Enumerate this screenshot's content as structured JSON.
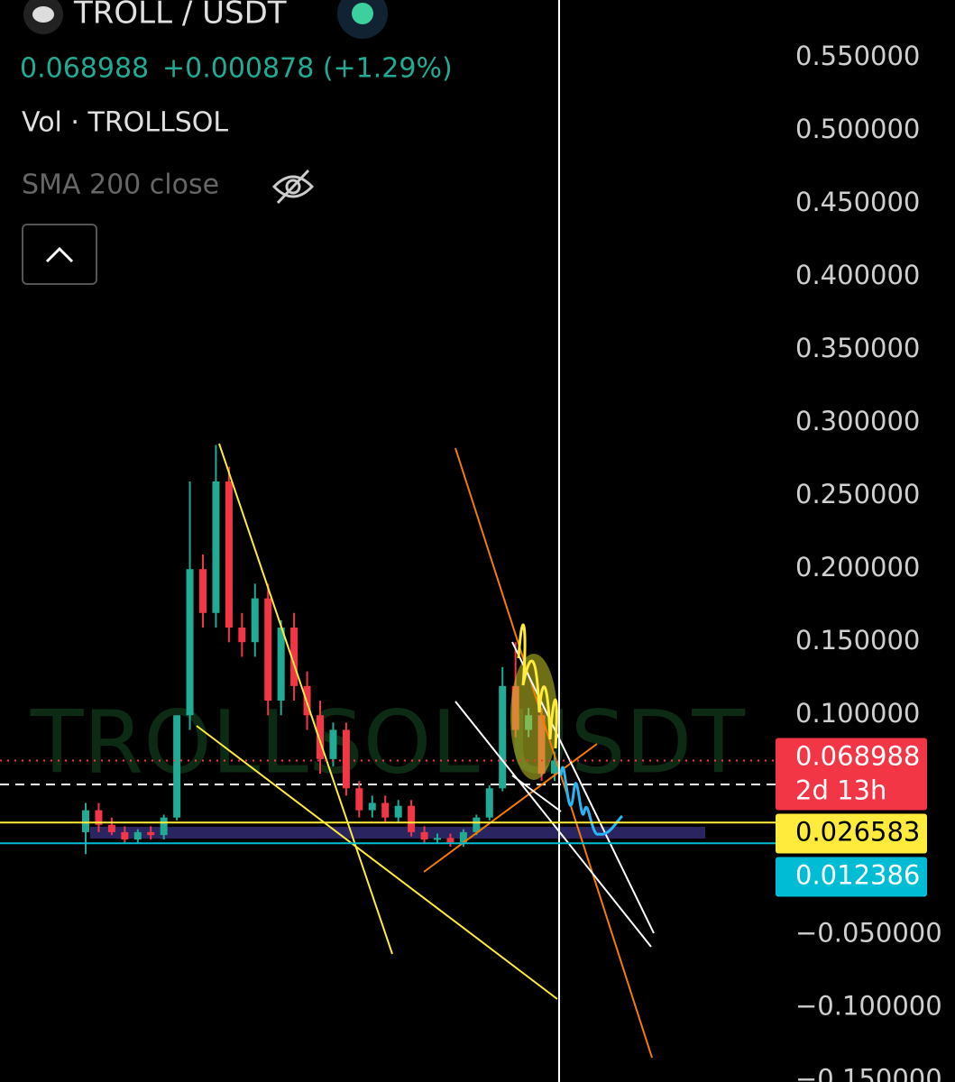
{
  "header": {
    "symbol": "TROLL / USDT",
    "price": "0.068988",
    "change": "+0.000878 (+1.29%)",
    "volume": "Vol · TROLLSOL",
    "indicator": "SMA 200 close"
  },
  "chart_data": {
    "type": "candlestick",
    "watermark": "TROLLSOL USDT",
    "up_color": "#22ab94",
    "down_color": "#f23645",
    "open": [
      0.02,
      0.035,
      0.025,
      0.02,
      0.015,
      0.02,
      0.018,
      0.03,
      0.1,
      0.2,
      0.17,
      0.26,
      0.16,
      0.15,
      0.18,
      0.11,
      0.16,
      0.12,
      0.1,
      0.07,
      0.09,
      0.05,
      0.035,
      0.04,
      0.03,
      0.038,
      0.02,
      0.015,
      0.016,
      0.013,
      0.02,
      0.03,
      0.05,
      0.12,
      0.09,
      0.1,
      0.06
    ],
    "high": [
      0.04,
      0.04,
      0.03,
      0.024,
      0.022,
      0.024,
      0.032,
      0.1,
      0.26,
      0.21,
      0.285,
      0.27,
      0.17,
      0.19,
      0.19,
      0.165,
      0.17,
      0.13,
      0.11,
      0.095,
      0.095,
      0.055,
      0.045,
      0.045,
      0.042,
      0.042,
      0.024,
      0.019,
      0.019,
      0.022,
      0.032,
      0.052,
      0.133,
      0.15,
      0.105,
      0.105,
      0.075
    ],
    "low": [
      0.005,
      0.02,
      0.018,
      0.012,
      0.012,
      0.015,
      0.015,
      0.028,
      0.09,
      0.16,
      0.16,
      0.15,
      0.14,
      0.14,
      0.1,
      0.1,
      0.11,
      0.09,
      0.06,
      0.065,
      0.045,
      0.03,
      0.03,
      0.027,
      0.027,
      0.017,
      0.012,
      0.012,
      0.01,
      0.01,
      0.018,
      0.028,
      0.048,
      0.085,
      0.085,
      0.055,
      0.055
    ],
    "close": [
      0.035,
      0.025,
      0.02,
      0.015,
      0.02,
      0.018,
      0.03,
      0.1,
      0.2,
      0.17,
      0.26,
      0.16,
      0.15,
      0.18,
      0.11,
      0.16,
      0.12,
      0.1,
      0.07,
      0.09,
      0.05,
      0.035,
      0.04,
      0.03,
      0.038,
      0.02,
      0.015,
      0.016,
      0.013,
      0.02,
      0.03,
      0.05,
      0.12,
      0.09,
      0.1,
      0.06,
      0.069
    ],
    "ylim": [
      -0.151,
      0.5895
    ],
    "yticks": [
      {
        "value": 0.55,
        "label": "0.550000"
      },
      {
        "value": 0.5,
        "label": "0.500000"
      },
      {
        "value": 0.45,
        "label": "0.450000"
      },
      {
        "value": 0.4,
        "label": "0.400000"
      },
      {
        "value": 0.35,
        "label": "0.350000"
      },
      {
        "value": 0.3,
        "label": "0.300000"
      },
      {
        "value": 0.25,
        "label": "0.250000"
      },
      {
        "value": 0.2,
        "label": "0.200000"
      },
      {
        "value": 0.15,
        "label": "0.150000"
      },
      {
        "value": 0.1,
        "label": "0.100000"
      },
      {
        "value": -0.05,
        "label": "−0.050000"
      },
      {
        "value": -0.1,
        "label": "−0.100000"
      },
      {
        "value": -0.15,
        "label": "−0.150000"
      }
    ],
    "price_lines": [
      {
        "value": 0.068988,
        "color": "#f23645",
        "countdown": "2d 13h"
      },
      {
        "value": 0.026583,
        "color": "#ffeb3b"
      },
      {
        "value": 0.012386,
        "color": "#00bcd4"
      }
    ]
  }
}
